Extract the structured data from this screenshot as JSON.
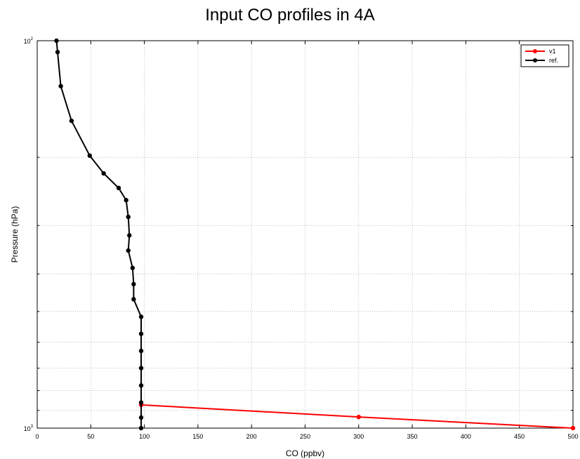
{
  "chart_data": {
    "type": "line",
    "title": "Input CO profiles in 4A",
    "xlabel": "CO (ppbv)",
    "ylabel": "Pressure (hPa)",
    "xlim": [
      0,
      500
    ],
    "ylim": [
      100,
      1000
    ],
    "y_scale": "log",
    "y_reversed": true,
    "grid": true,
    "legend_position": "top-right",
    "x_ticks": [
      0,
      50,
      100,
      150,
      200,
      250,
      300,
      350,
      400,
      450,
      500
    ],
    "y_ticks": [
      {
        "value": 100,
        "base": "10",
        "exp": "2"
      },
      {
        "value": 1000,
        "base": "10",
        "exp": "3"
      }
    ],
    "series": [
      {
        "name": "v1",
        "color": "#ff0000",
        "points": [
          {
            "x": 97,
            "p": 871
          },
          {
            "x": 300,
            "p": 936
          },
          {
            "x": 500,
            "p": 1000
          }
        ]
      },
      {
        "name": "ref.",
        "color": "#000000",
        "points": [
          {
            "x": 18,
            "p": 100
          },
          {
            "x": 19,
            "p": 107
          },
          {
            "x": 22,
            "p": 131
          },
          {
            "x": 32,
            "p": 161
          },
          {
            "x": 49,
            "p": 198
          },
          {
            "x": 62,
            "p": 220
          },
          {
            "x": 76,
            "p": 240
          },
          {
            "x": 83,
            "p": 258
          },
          {
            "x": 85,
            "p": 285
          },
          {
            "x": 86,
            "p": 318
          },
          {
            "x": 85,
            "p": 348
          },
          {
            "x": 89,
            "p": 386
          },
          {
            "x": 90,
            "p": 425
          },
          {
            "x": 90,
            "p": 465
          },
          {
            "x": 97,
            "p": 516
          },
          {
            "x": 97,
            "p": 571
          },
          {
            "x": 97,
            "p": 632
          },
          {
            "x": 97,
            "p": 700
          },
          {
            "x": 97,
            "p": 776
          },
          {
            "x": 97,
            "p": 859
          },
          {
            "x": 97,
            "p": 939
          },
          {
            "x": 97,
            "p": 1000
          }
        ]
      }
    ]
  }
}
